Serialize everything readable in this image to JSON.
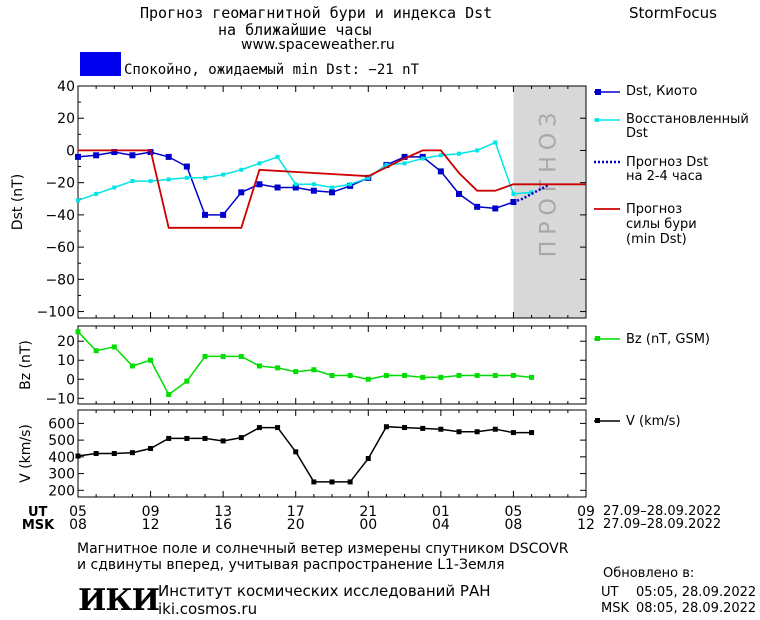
{
  "header": {
    "title_line1": "Прогноз геомагнитной бури и индекса Dst",
    "title_line2": "на ближайшие часы",
    "site": "www.spaceweather.ru",
    "brand": "StormFocus"
  },
  "status": {
    "text": "Спокойно, ожидаемый min Dst: −21 nT",
    "color": "#0000ee"
  },
  "colors": {
    "dst_kyoto": "#0000cc",
    "dst_restored": "#00e5e5",
    "forecast_dst": "#0000cc",
    "storm_forecast": "#cc0000",
    "bz": "#00dd00",
    "speed": "#000000",
    "forecast_zone": "#d8d8d8"
  },
  "legend": {
    "dst_kyoto": "Dst, Киото",
    "restored_1": "Восстановленный",
    "restored_2": "Dst",
    "forecast_dst_1": "Прогноз Dst",
    "forecast_dst_2": "на 2-4 часа",
    "storm_1": "Прогноз",
    "storm_2": "силы бури",
    "storm_3": "(min Dst)",
    "bz": "Bz (nT, GSM)",
    "speed": "V (km/s)"
  },
  "forecast_zone_label": "ПРОГНОЗ",
  "axis": {
    "ut_label": "UT",
    "msk_label": "MSK",
    "ut_ticks": [
      "05",
      "09",
      "13",
      "17",
      "21",
      "01",
      "05",
      "09"
    ],
    "msk_ticks": [
      "08",
      "12",
      "16",
      "20",
      "00",
      "04",
      "08",
      "12"
    ],
    "ut_range": "27.09–28.09.2022",
    "msk_range": "27.09–28.09.2022"
  },
  "footer": {
    "note_line1": "Магнитное поле и солнечный ветер измерены спутником DSCOVR",
    "note_line2": "и сдвинуты вперед, учитывая распространение L1-Земля",
    "institute": "Институт космических исследований РАН",
    "institute_site": "iki.cosmos.ru",
    "logo_text": "ИКИ",
    "updated_label": "Обновлено в:",
    "updated_ut_label": "UT",
    "updated_ut": "05:05, 28.09.2022",
    "updated_msk_label": "MSK",
    "updated_msk": "08:05, 28.09.2022"
  },
  "chart_data": [
    {
      "type": "line",
      "ylabel": "Dst (nT)",
      "ylim": [
        -104,
        40
      ],
      "yticks": [
        40,
        20,
        0,
        -20,
        -40,
        -60,
        -80,
        -100
      ],
      "x_hours_ut_from_05": [
        0,
        1,
        2,
        3,
        4,
        5,
        6,
        7,
        8,
        9,
        10,
        11,
        12,
        13,
        14,
        15,
        16,
        17,
        18,
        19,
        20,
        21,
        22,
        23,
        24
      ],
      "forecast_zone_hours": [
        24,
        28
      ],
      "series": [
        {
          "name": "Dst, Киото",
          "x": [
            0,
            1,
            2,
            3,
            4,
            5,
            6,
            7,
            8,
            9,
            10,
            11,
            12,
            13,
            14,
            15,
            16,
            17,
            18,
            19,
            20,
            21,
            22,
            23,
            24
          ],
          "values": [
            -4,
            -3,
            -1,
            -3,
            -1,
            -4,
            -10,
            -40,
            -40,
            -26,
            -21,
            -23,
            -23,
            -25,
            -26,
            -22,
            -17,
            -9,
            -4,
            -4,
            -13,
            -27,
            -35,
            -36,
            -32
          ]
        },
        {
          "name": "Восстановленный Dst",
          "x": [
            0,
            1,
            2,
            3,
            4,
            5,
            6,
            7,
            8,
            9,
            10,
            11,
            12,
            13,
            14,
            15,
            16,
            17,
            18,
            19,
            20,
            21,
            22,
            23,
            24,
            25
          ],
          "values": [
            -31,
            -27,
            -23,
            -19,
            -19,
            -18,
            -17,
            -17,
            -15,
            -12,
            -8,
            -4,
            -21,
            -21,
            -23,
            -21,
            -17,
            -9,
            -8,
            -5,
            -3,
            -2,
            0,
            5,
            -27,
            -26
          ]
        },
        {
          "name": "Прогноз Dst на 2-4 часа",
          "x": [
            24,
            24.5,
            25,
            25.5,
            26
          ],
          "values": [
            -32,
            -30,
            -27,
            -24,
            -21
          ]
        },
        {
          "name": "Прогноз силы бури (min Dst)",
          "x": [
            0,
            4,
            5,
            9,
            10,
            13,
            16,
            18,
            19,
            20,
            21,
            22,
            23,
            24,
            25,
            28
          ],
          "values": [
            0,
            0,
            -48,
            -48,
            -12,
            -14,
            -16,
            -5,
            0,
            0,
            -14,
            -25,
            -25,
            -21,
            -21,
            -21
          ]
        }
      ]
    },
    {
      "type": "line",
      "ylabel": "Bz (nT)",
      "ylim": [
        -13,
        28
      ],
      "yticks": [
        20,
        10,
        0,
        -10
      ],
      "series": [
        {
          "name": "Bz (nT, GSM)",
          "x": [
            0,
            1,
            2,
            3,
            4,
            5,
            6,
            7,
            8,
            9,
            10,
            11,
            12,
            13,
            14,
            15,
            16,
            17,
            18,
            19,
            20,
            21,
            22,
            23,
            24,
            25
          ],
          "values": [
            25,
            15,
            17,
            7,
            10,
            -8,
            -1,
            12,
            12,
            12,
            7,
            6,
            4,
            5,
            2,
            2,
            0,
            2,
            2,
            1,
            1,
            2,
            2,
            2,
            2,
            1
          ]
        }
      ]
    },
    {
      "type": "line",
      "ylabel": "V (km/s)",
      "ylim": [
        160,
        680
      ],
      "yticks": [
        600,
        500,
        400,
        300,
        200
      ],
      "series": [
        {
          "name": "V (km/s)",
          "x": [
            0,
            1,
            2,
            3,
            4,
            5,
            6,
            7,
            8,
            9,
            10,
            11,
            12,
            13,
            14,
            15,
            16,
            17,
            18,
            19,
            20,
            21,
            22,
            23,
            24,
            25
          ],
          "values": [
            405,
            420,
            420,
            425,
            450,
            510,
            510,
            510,
            495,
            515,
            575,
            575,
            430,
            250,
            250,
            250,
            390,
            580,
            575,
            570,
            565,
            550,
            550,
            565,
            545,
            545
          ]
        }
      ]
    }
  ]
}
